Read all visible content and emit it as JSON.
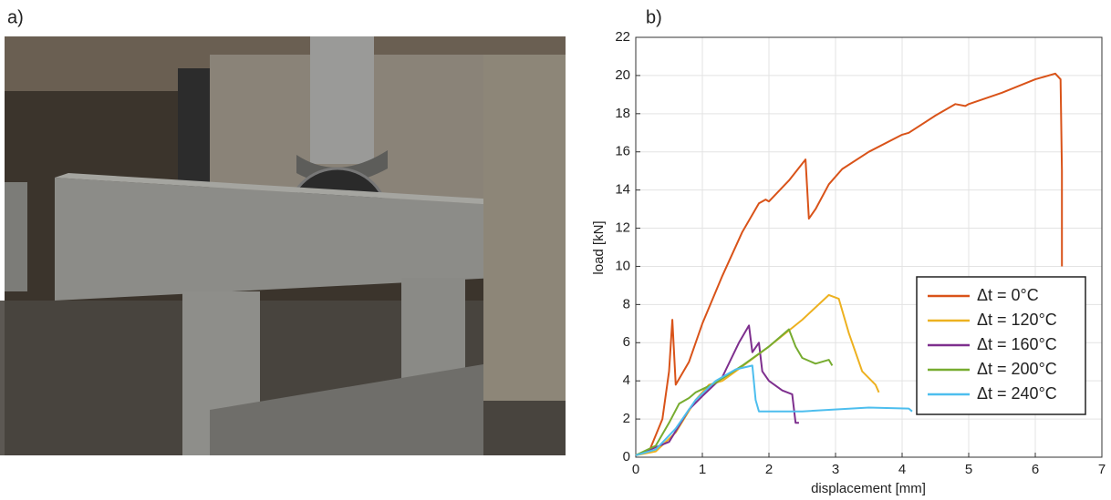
{
  "photo_label": "a)",
  "chart_data": {
    "type": "line",
    "panel_label": "b)",
    "x_label": "displacement [mm]",
    "y_label": "load [kN]",
    "xlim": [
      0,
      7
    ],
    "xticks": [
      0,
      1,
      2,
      3,
      4,
      5,
      6,
      7
    ],
    "ylim": [
      0,
      22
    ],
    "yticks": [
      0,
      2,
      4,
      6,
      8,
      10,
      12,
      14,
      16,
      18,
      20,
      22
    ],
    "grid": true,
    "legend": "right",
    "series": [
      {
        "name": "Δt = 0°C",
        "color": "#d95319",
        "x": [
          0,
          0.2,
          0.4,
          0.5,
          0.55,
          0.6,
          0.8,
          1,
          1.3,
          1.6,
          1.85,
          1.95,
          2,
          2.3,
          2.55,
          2.6,
          2.7,
          2.9,
          3.1,
          3.5,
          4,
          4.1,
          4.5,
          4.8,
          4.95,
          5,
          5.5,
          6,
          6.3,
          6.38,
          6.4,
          6.4
        ],
        "values": [
          0.1,
          0.3,
          2,
          4.5,
          7.2,
          3.8,
          5,
          7,
          9.5,
          11.8,
          13.3,
          13.5,
          13.4,
          14.5,
          15.6,
          12.5,
          13,
          14.3,
          15.1,
          16,
          16.9,
          17,
          17.9,
          18.5,
          18.4,
          18.5,
          19.1,
          19.8,
          20.1,
          19.8,
          15,
          10
        ]
      },
      {
        "name": "Δt = 120°C",
        "color": "#edb120",
        "x": [
          0,
          0.3,
          0.6,
          0.9,
          1.1,
          1.3,
          1.5,
          2,
          2.5,
          2.9,
          3.05,
          3.2,
          3.4,
          3.6,
          3.65
        ],
        "values": [
          0.1,
          0.3,
          1.3,
          3,
          3.8,
          4,
          4.5,
          5.8,
          7.2,
          8.5,
          8.3,
          6.5,
          4.5,
          3.8,
          3.4
        ]
      },
      {
        "name": "Δt = 160°C",
        "color": "#7e2f8e",
        "x": [
          0,
          0.5,
          0.8,
          1,
          1.3,
          1.55,
          1.7,
          1.75,
          1.85,
          1.9,
          2,
          2.2,
          2.35,
          2.4,
          2.45
        ],
        "values": [
          0.1,
          0.8,
          2.5,
          3.2,
          4.2,
          6,
          6.9,
          5.5,
          6,
          4.5,
          4,
          3.5,
          3.3,
          1.8,
          1.8
        ]
      },
      {
        "name": "Δt = 200°C",
        "color": "#77ac30",
        "x": [
          0,
          0.3,
          0.5,
          0.65,
          0.8,
          0.9,
          1.2,
          1.6,
          2,
          2.3,
          2.4,
          2.5,
          2.7,
          2.9,
          2.95
        ],
        "values": [
          0.1,
          0.6,
          1.8,
          2.8,
          3.1,
          3.4,
          3.9,
          4.8,
          5.8,
          6.7,
          5.8,
          5.2,
          4.9,
          5.1,
          4.8
        ]
      },
      {
        "name": "Δt = 240°C",
        "color": "#4dbeee",
        "x": [
          0,
          0.3,
          0.6,
          0.9,
          1.2,
          1.5,
          1.75,
          1.8,
          1.85,
          2.5,
          3.5,
          4.1,
          4.15
        ],
        "values": [
          0.1,
          0.4,
          1.5,
          3,
          4,
          4.6,
          4.8,
          3,
          2.4,
          2.4,
          2.6,
          2.55,
          2.4
        ]
      }
    ]
  }
}
